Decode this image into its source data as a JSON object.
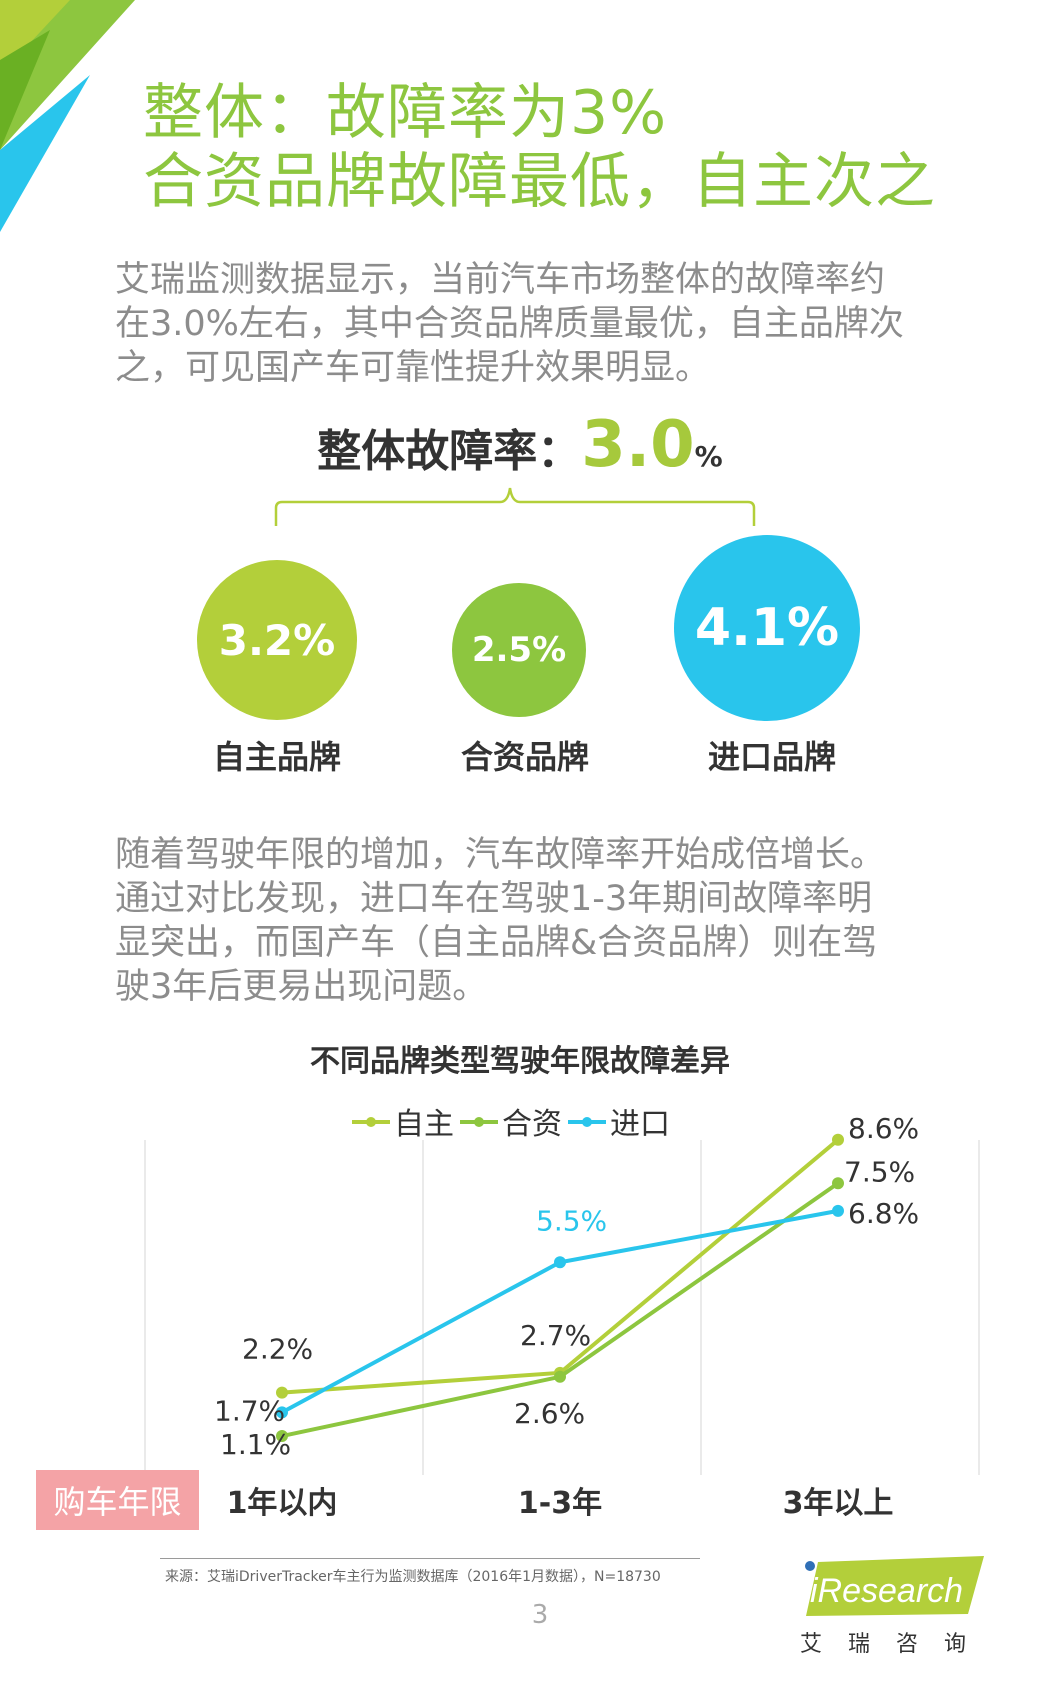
{
  "title": {
    "line1": "整体：故障率为3%",
    "line2": "合资品牌故障最低，自主次之"
  },
  "intro": [
    "艾瑞监测数据显示，当前汽车市场整体的故障率约",
    "在3.0%左右，其中合资品牌质量最优，自主品牌次",
    "之，可见国产车可靠性提升效果明显。"
  ],
  "overall": {
    "label": "整体故障率：",
    "value": "3.0",
    "unit": "%"
  },
  "brands": [
    {
      "rate": "3.2%",
      "name": "自主品牌",
      "color": "#b3cf3a"
    },
    {
      "rate": "2.5%",
      "name": "合资品牌",
      "color": "#8dc63f"
    },
    {
      "rate": "4.1%",
      "name": "进口品牌",
      "color": "#29c5ec"
    }
  ],
  "analysis": [
    "随着驾驶年限的增加，汽车故障率开始成倍增长。",
    "通过对比发现，进口车在驾驶1-3年期间故障率明",
    "显突出，而国产车（自主品牌&合资品牌）则在驾",
    "驶3年后更易出现问题。"
  ],
  "chart_data": {
    "type": "line",
    "title": "不同品牌类型驾驶年限故障差异",
    "categories": [
      "1年以内",
      "1-3年",
      "3年以上"
    ],
    "xlabel": "购车年限",
    "ylabel": "",
    "legend_position": "top",
    "grid": "vertical",
    "series": [
      {
        "name": "自主",
        "values": [
          2.2,
          2.7,
          8.6
        ],
        "labels": [
          "2.2%",
          "2.7%",
          "8.6%"
        ],
        "color": "#b3cf3a"
      },
      {
        "name": "合资",
        "values": [
          1.1,
          2.6,
          7.5
        ],
        "labels": [
          "1.1%",
          "2.6%",
          "7.5%"
        ],
        "color": "#8dc63f"
      },
      {
        "name": "进口",
        "values": [
          1.7,
          5.5,
          6.8
        ],
        "labels": [
          "1.7%",
          "5.5%",
          "6.8%"
        ],
        "color": "#29c5ec"
      }
    ]
  },
  "source": "来源：艾瑞iDriverTracker车主行为监测数据库（2016年1月数据），N=18730",
  "page_number": "3",
  "logo": {
    "brand": "iResearch",
    "chinese": "艾瑞咨询"
  }
}
